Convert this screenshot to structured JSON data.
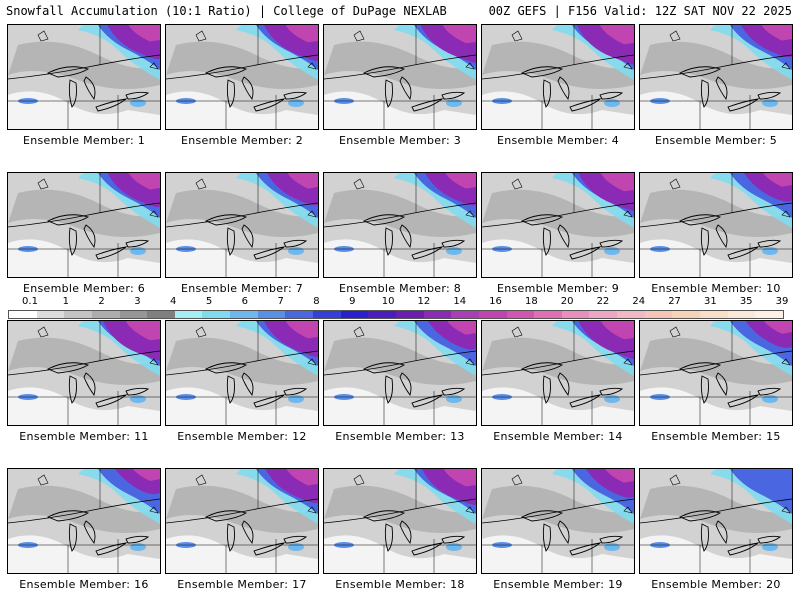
{
  "header": {
    "title_left": "Snowfall Accumulation (10:1 Ratio) | College of DuPage NEXLAB",
    "title_right": "00Z GEFS | F156 Valid: 12Z SAT NOV 22 2025"
  },
  "panels": [
    {
      "label": "Ensemble Member: 1",
      "intensity": 0.75,
      "heavy": true
    },
    {
      "label": "Ensemble Member: 2",
      "intensity": 0.8,
      "heavy": true
    },
    {
      "label": "Ensemble Member: 3",
      "intensity": 0.85,
      "heavy": true
    },
    {
      "label": "Ensemble Member: 4",
      "intensity": 0.9,
      "heavy": true
    },
    {
      "label": "Ensemble Member: 5",
      "intensity": 0.7,
      "heavy": true
    },
    {
      "label": "Ensemble Member: 6",
      "intensity": 0.75,
      "heavy": true
    },
    {
      "label": "Ensemble Member: 7",
      "intensity": 0.7,
      "heavy": true
    },
    {
      "label": "Ensemble Member: 8",
      "intensity": 0.7,
      "heavy": true
    },
    {
      "label": "Ensemble Member: 9",
      "intensity": 0.85,
      "heavy": true
    },
    {
      "label": "Ensemble Member: 10",
      "intensity": 0.6,
      "heavy": true
    },
    {
      "label": "Ensemble Member: 11",
      "intensity": 0.9,
      "heavy": true
    },
    {
      "label": "Ensemble Member: 12",
      "intensity": 0.8,
      "heavy": true
    },
    {
      "label": "Ensemble Member: 13",
      "intensity": 0.6,
      "heavy": true
    },
    {
      "label": "Ensemble Member: 14",
      "intensity": 0.85,
      "heavy": true
    },
    {
      "label": "Ensemble Member: 15",
      "intensity": 0.55,
      "heavy": true
    },
    {
      "label": "Ensemble Member: 16",
      "intensity": 0.5,
      "heavy": true
    },
    {
      "label": "Ensemble Member: 17",
      "intensity": 0.75,
      "heavy": true
    },
    {
      "label": "Ensemble Member: 18",
      "intensity": 0.8,
      "heavy": true
    },
    {
      "label": "Ensemble Member: 19",
      "intensity": 0.6,
      "heavy": true
    },
    {
      "label": "Ensemble Member: 20",
      "intensity": 0.3,
      "heavy": false
    }
  ],
  "legend": {
    "labels": [
      "0.1",
      "1",
      "2",
      "3",
      "4",
      "5",
      "6",
      "7",
      "8",
      "9",
      "10",
      "12",
      "14",
      "16",
      "18",
      "20",
      "22",
      "24",
      "27",
      "31",
      "35",
      "39"
    ],
    "colors": [
      "#ffffff",
      "#dcdcdc",
      "#c4c4c4",
      "#adadad",
      "#969696",
      "#7f7f7f",
      "#a6eef5",
      "#7fdbee",
      "#6fb8ee",
      "#5a8fe8",
      "#4a66e0",
      "#3340d6",
      "#2a1fcf",
      "#4a1ebd",
      "#6a1fb0",
      "#8a2ab5",
      "#a83fb5",
      "#c045b0",
      "#d355b2",
      "#e070b5",
      "#e88fbe",
      "#eda6c5",
      "#f0b9c4",
      "#f4c6b8",
      "#f7d3b5",
      "#f9dfc8",
      "#fce8d8",
      "#fdf0e6"
    ]
  }
}
